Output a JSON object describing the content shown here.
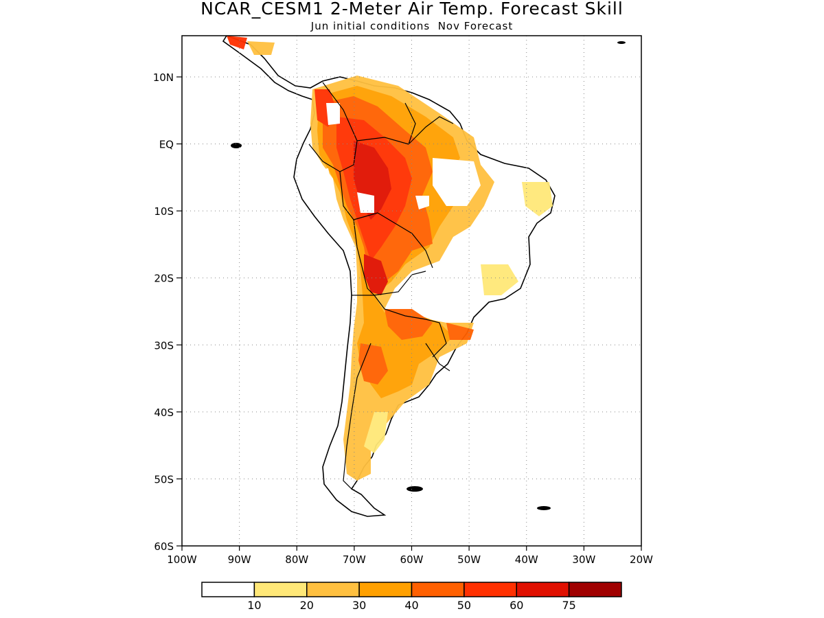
{
  "title": "NCAR_CESM1 2-Meter Air Temp. Forecast Skill",
  "subtitle": "Jun initial conditions  Nov Forecast",
  "map": {
    "lon_range": [
      -100,
      -20
    ],
    "lat_range": [
      -60,
      6
    ],
    "lat_ticks": [
      {
        "value": 10,
        "label": "10N"
      },
      {
        "value": 0,
        "label": "EQ"
      },
      {
        "value": -10,
        "label": "10S"
      },
      {
        "value": -20,
        "label": "20S"
      },
      {
        "value": -30,
        "label": "30S"
      },
      {
        "value": -40,
        "label": "40S"
      },
      {
        "value": -50,
        "label": "50S"
      },
      {
        "value": -60,
        "label": "60S"
      }
    ],
    "lon_ticks": [
      {
        "value": -100,
        "label": "100W"
      },
      {
        "value": -90,
        "label": "90W"
      },
      {
        "value": -80,
        "label": "80W"
      },
      {
        "value": -70,
        "label": "70W"
      },
      {
        "value": -60,
        "label": "60W"
      },
      {
        "value": -50,
        "label": "50W"
      },
      {
        "value": -40,
        "label": "40W"
      },
      {
        "value": -30,
        "label": "30W"
      },
      {
        "value": -20,
        "label": "20W"
      }
    ],
    "grid": "dotted"
  },
  "colorbar": {
    "colors": [
      "#ffffff",
      "#ffe878",
      "#ffc040",
      "#ffa000",
      "#ff6000",
      "#ff3000",
      "#e01000",
      "#a00000"
    ],
    "labels": [
      "10",
      "20",
      "30",
      "40",
      "50",
      "60",
      "75"
    ]
  }
}
